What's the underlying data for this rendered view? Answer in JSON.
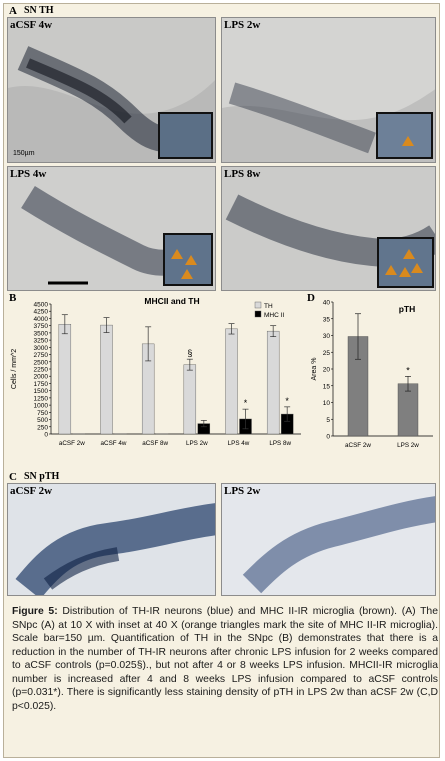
{
  "panels": {
    "A": {
      "letter": "A",
      "title": "SN TH"
    },
    "C": {
      "letter": "C",
      "title": "SN pTH"
    },
    "B": {
      "letter": "B"
    },
    "D": {
      "letter": "D"
    }
  },
  "photos": {
    "a_csf_4w": "aCSF 4w",
    "lps_2w": "LPS 2w",
    "lps_4w": "LPS 4w",
    "lps_8w": "LPS 8w",
    "c_acsf_2w": "aCSF 2w",
    "c_lps_2w": "LPS 2w",
    "scale_label": "150µm"
  },
  "chart_data": [
    {
      "type": "bar",
      "title": "MHCII and TH",
      "ylabel": "Cells / mm^2",
      "ylim": [
        0,
        4500
      ],
      "yticks": [
        0,
        250,
        500,
        750,
        1000,
        1250,
        1500,
        1750,
        2000,
        2250,
        2500,
        2750,
        3000,
        3250,
        3500,
        3750,
        4000,
        4250,
        4500
      ],
      "categories": [
        "aCSF 2w",
        "aCSF 4w",
        "aCSF 8w",
        "LPS 2w",
        "LPS 4w",
        "LPS 8w"
      ],
      "series": [
        {
          "name": "TH",
          "color": "#d9d9d9",
          "values": [
            3800,
            3770,
            3120,
            2400,
            3640,
            3560
          ],
          "errors": [
            330,
            260,
            590,
            190,
            180,
            190
          ]
        },
        {
          "name": "MHC II",
          "color": "#000000",
          "values": [
            10,
            10,
            10,
            360,
            520,
            690
          ],
          "errors": [
            0,
            0,
            0,
            110,
            340,
            250
          ]
        }
      ],
      "annotations": [
        "§",
        "*",
        "*"
      ],
      "legend": "top-right"
    },
    {
      "type": "bar",
      "title": "pTH",
      "ylabel": "Area %",
      "ylim": [
        0,
        40
      ],
      "yticks": [
        0,
        5,
        10,
        15,
        20,
        25,
        30,
        35,
        40
      ],
      "categories": [
        "aCSF 2w",
        "LPS 2w"
      ],
      "series": [
        {
          "color": "#7f7f7f",
          "values": [
            29.7,
            15.6
          ],
          "errors": [
            6.8,
            2.2
          ]
        }
      ],
      "annotations": [
        "*"
      ]
    }
  ],
  "caption": {
    "label": "Figure 5:",
    "text": " Distribution of TH-IR neurons (blue) and MHC II-IR microglia (brown). (A) The SNpc (A) at 10 X with inset at 40 X (orange triangles mark the site of MHC II-IR microglia). Scale bar=150 µm. Quantification of TH in the SNpc (B) demonstrates that there is a reduction in the number of TH-IR neurons after chronic LPS infusion for 2 weeks compared to aCSF controls (p=0.025§)., but not after 4 or 8 weeks LPS infusion. MHCII-IR microglia number is increased after 4 and 8 weeks LPS infusion compared to aCSF controls (p=0.031*). There is significantly less staining density of pTH in LPS 2w than aCSF 2w (C,D p<0.025)."
  },
  "colors": {
    "figure_bg": "#f6f1e2",
    "stain_blue": "#1f2f4f",
    "microglia_orange": "#d98a1e"
  }
}
